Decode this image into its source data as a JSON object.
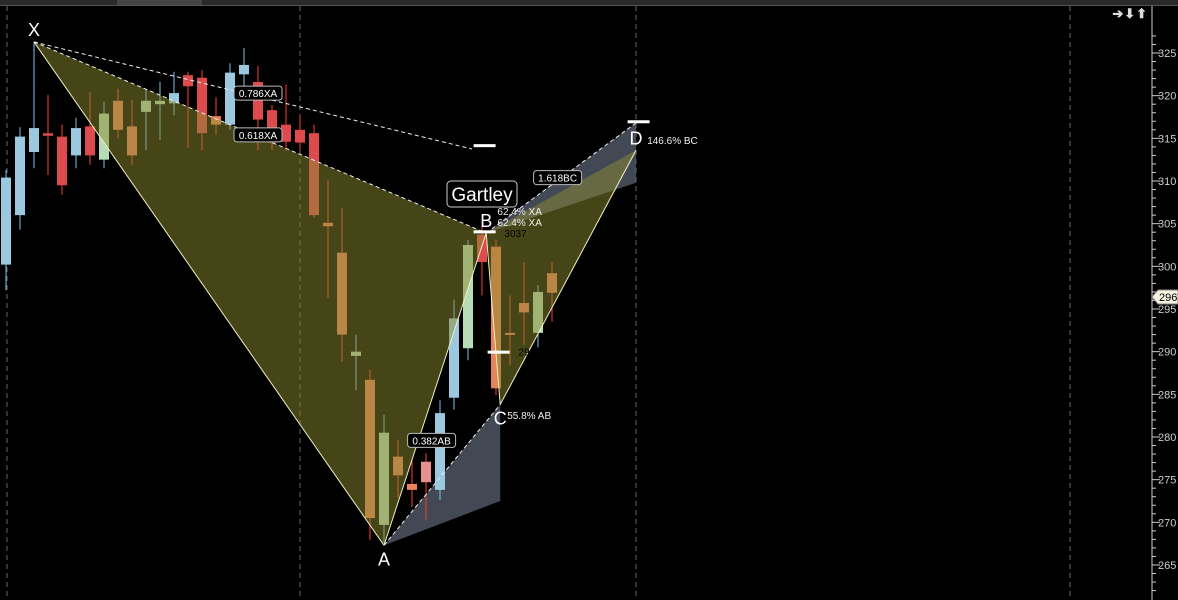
{
  "nav": {
    "arrows": [
      "arrow-right-icon",
      "arrow-down-icon",
      "arrow-up-icon"
    ],
    "glyphs": "➔⬇⬆"
  },
  "chart_data": {
    "type": "candlestick",
    "ylim": [
      262,
      327
    ],
    "yticks": [
      325,
      320,
      315,
      310,
      305,
      300,
      295,
      290,
      285,
      280,
      275,
      270,
      265
    ],
    "ytick_labels": [
      "325",
      "320",
      "315",
      "310",
      "305",
      "300",
      "295",
      "290",
      "285",
      "280",
      "275",
      "270",
      "265"
    ],
    "last_price_label": "296",
    "last_price": 296.4,
    "grid": "vertical dashed",
    "colors": {
      "blue": "#9cc8e0",
      "green": "#b8dcb8",
      "orange": "#e8825a",
      "red": "#dd4b4f",
      "pink": "#e89090",
      "fill": "#4a4a20",
      "band": "#5a6270"
    },
    "candles": [
      [
        300.2,
        311.3,
        297.2,
        310.4,
        "blue"
      ],
      [
        306.0,
        316.3,
        304.3,
        315.2,
        "blue"
      ],
      [
        313.4,
        326.3,
        311.5,
        316.2,
        "blue"
      ],
      [
        315.6,
        320.1,
        310.7,
        315.3,
        "red"
      ],
      [
        315.2,
        316.6,
        308.4,
        309.5,
        "red"
      ],
      [
        313.0,
        317.4,
        311.5,
        316.2,
        "blue"
      ],
      [
        316.4,
        320.4,
        311.9,
        313.0,
        "red"
      ],
      [
        312.5,
        319.3,
        311.5,
        317.9,
        "green"
      ],
      [
        319.4,
        320.8,
        315.0,
        316.0,
        "orange"
      ],
      [
        316.4,
        319.5,
        311.9,
        313.0,
        "orange"
      ],
      [
        318.1,
        320.7,
        313.6,
        319.4,
        "green"
      ],
      [
        319.0,
        321.6,
        314.8,
        319.4,
        "green"
      ],
      [
        319.1,
        322.8,
        317.7,
        320.3,
        "blue"
      ],
      [
        322.4,
        322.8,
        313.9,
        321.1,
        "red"
      ],
      [
        322.1,
        323.0,
        313.6,
        315.6,
        "red"
      ],
      [
        317.6,
        319.8,
        315.4,
        316.6,
        "orange"
      ],
      [
        316.6,
        323.8,
        316.0,
        322.7,
        "blue"
      ],
      [
        322.5,
        325.6,
        319.5,
        323.6,
        "blue"
      ],
      [
        321.6,
        323.5,
        313.6,
        317.2,
        "red"
      ],
      [
        318.3,
        318.9,
        313.6,
        314.5,
        "red"
      ],
      [
        316.6,
        321.3,
        313.6,
        314.6,
        "red"
      ],
      [
        316.0,
        317.7,
        313.6,
        314.5,
        "red"
      ],
      [
        315.6,
        316.6,
        305.7,
        306.0,
        "red"
      ],
      [
        305.1,
        310.1,
        296.3,
        304.7,
        "orange"
      ],
      [
        301.6,
        306.8,
        288.8,
        292.0,
        "orange"
      ],
      [
        289.5,
        292.0,
        285.5,
        290.0,
        "green"
      ],
      [
        286.7,
        287.9,
        267.9,
        270.5,
        "orange"
      ],
      [
        269.7,
        282.6,
        267.6,
        280.5,
        "green"
      ],
      [
        277.7,
        279.6,
        272.9,
        275.5,
        "orange"
      ],
      [
        274.5,
        277.3,
        271.8,
        273.8,
        "orange"
      ],
      [
        277.1,
        278.1,
        270.3,
        274.7,
        "pink"
      ],
      [
        273.8,
        284.3,
        272.6,
        282.8,
        "blue"
      ],
      [
        284.6,
        296.1,
        283.2,
        293.9,
        "blue"
      ],
      [
        290.4,
        303.1,
        289.0,
        302.5,
        "green"
      ],
      [
        303.7,
        304.8,
        296.6,
        300.5,
        "red"
      ],
      [
        302.3,
        303.1,
        284.9,
        285.7,
        "orange"
      ],
      [
        292.2,
        296.6,
        288.4,
        292.1,
        "orange"
      ],
      [
        295.7,
        300.5,
        290.8,
        294.6,
        "orange"
      ],
      [
        292.2,
        297.8,
        290.5,
        297.0,
        "green"
      ],
      [
        299.2,
        300.5,
        293.5,
        296.9,
        "orange"
      ]
    ],
    "pattern": {
      "name": "Gartley",
      "points": [
        {
          "label": "X",
          "bar": 2,
          "price": 326.3
        },
        {
          "label": "A",
          "bar": 27,
          "price": 267.3
        },
        {
          "label": "B",
          "bar": 34.3,
          "price": 303.9
        },
        {
          "label": "C",
          "bar": 35.3,
          "price": 283.8
        },
        {
          "label": "D",
          "bar": 45,
          "price": 313.6
        }
      ],
      "ratio_tags": [
        {
          "text": "0.786XA",
          "bar": 18,
          "price": 320.3
        },
        {
          "text": "0.618XA",
          "bar": 18,
          "price": 315.4
        },
        {
          "text": "1.618BC",
          "bar": 39.4,
          "price": 310.4
        },
        {
          "text": "0.382AB",
          "bar": 30.4,
          "price": 279.6
        }
      ],
      "annotations": [
        {
          "text": "62.4% XA",
          "bar": 35.1,
          "price": 306.5
        },
        {
          "text": "62.4% XA",
          "bar": 35.1,
          "price": 305.2
        },
        {
          "text": "3037",
          "bar": 35.6,
          "price": 303.9
        },
        {
          "text": "290",
          "bar": 36.6,
          "price": 290.0
        },
        {
          "text": "55.8% AB",
          "bar": 35.8,
          "price": 282.6
        },
        {
          "text": "146.6% BC",
          "bar": 45.8,
          "price": 314.8
        }
      ],
      "levels": [
        {
          "bar": 33.4,
          "price": 314.2
        },
        {
          "bar": 44.4,
          "price": 317.0
        },
        {
          "bar": 33.4,
          "price": 304.1
        },
        {
          "bar": 34.4,
          "price": 290.0
        }
      ]
    }
  }
}
